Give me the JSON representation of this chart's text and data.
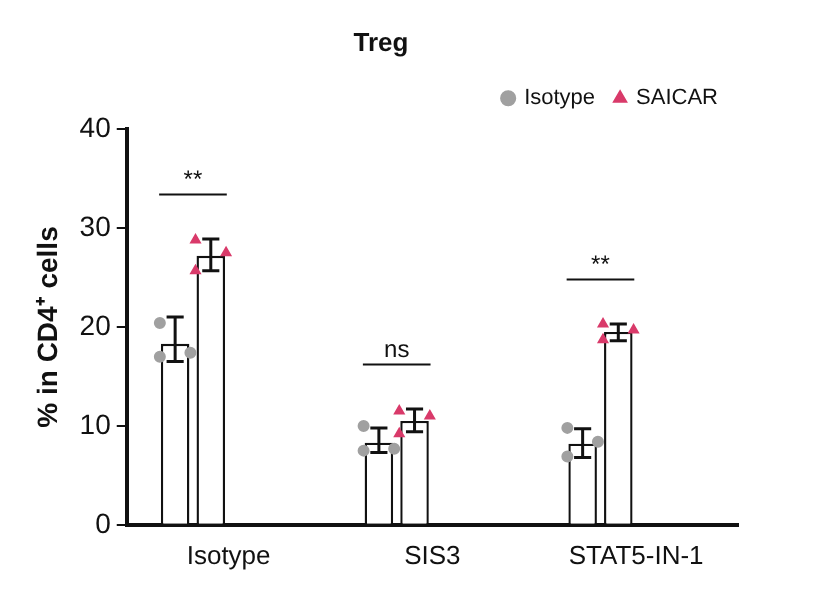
{
  "chart_data": {
    "type": "bar",
    "title": "Treg",
    "ylabel": "% in CD4⁺ cells",
    "categories": [
      "Isotype",
      "SIS3",
      "STAT5-IN-1"
    ],
    "series": [
      {
        "color": "#ffffff",
        "values": [
          18.3,
          8.3,
          8.2
        ],
        "errors": [
          [
            16.5,
            21.0
          ],
          [
            7.3,
            9.8
          ],
          [
            6.8,
            9.7
          ]
        ]
      },
      {
        "color": "#ffffff",
        "values": [
          27.2,
          10.5,
          19.5
        ],
        "errors": [
          [
            25.7,
            28.9
          ],
          [
            9.4,
            11.7
          ],
          [
            18.6,
            20.3
          ]
        ]
      },
      {
        "type": "scatter",
        "name": "Isotype",
        "color": "#a0a0a0",
        "marker": "circle",
        "x": [
          "Isotype",
          "Isotype",
          "Isotype",
          "SIS3",
          "SIS3",
          "SIS3",
          "STAT5-IN-1",
          "STAT5-IN-1",
          "STAT5-IN-1"
        ],
        "values": [
          20.4,
          17.4,
          17.0,
          10.0,
          7.7,
          7.5,
          9.8,
          8.4,
          6.9
        ]
      },
      {
        "type": "scatter",
        "name": "SAICAR",
        "color": "#d93a6a",
        "marker": "triangle",
        "x": [
          "Isotype",
          "Isotype",
          "Isotype",
          "SIS3",
          "SIS3",
          "SIS3",
          "STAT5-IN-1",
          "STAT5-IN-1",
          "STAT5-IN-1"
        ],
        "values": [
          28.8,
          27.5,
          25.7,
          11.5,
          11.0,
          9.2,
          20.3,
          19.7,
          18.7
        ]
      }
    ],
    "ylim": [
      0,
      40
    ],
    "yticks": [
      0,
      10,
      20,
      30,
      40
    ],
    "grid": false,
    "legend": "top right",
    "annotations": [
      "**",
      "ns",
      "**"
    ]
  }
}
